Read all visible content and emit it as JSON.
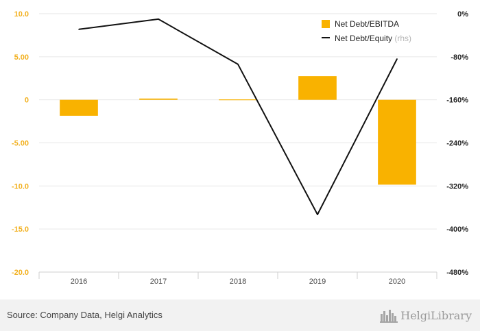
{
  "chart_data": {
    "type": "bar",
    "categories": [
      "2016",
      "2017",
      "2018",
      "2019",
      "2020"
    ],
    "series": [
      {
        "name": "Net Debt/EBITDA",
        "kind": "bar",
        "axis": "left",
        "values": [
          -1.85,
          0.15,
          0.05,
          2.75,
          -9.85
        ]
      },
      {
        "name": "Net Debt/Equity",
        "name_suffix": "(rhs)",
        "kind": "line",
        "axis": "right",
        "values": [
          -29.0,
          -10.0,
          -94.0,
          -373.0,
          -84.0
        ]
      }
    ],
    "y_left": {
      "min": -20,
      "max": 10,
      "ticks": [
        10,
        5,
        0,
        -5,
        -10,
        -15,
        -20
      ],
      "tick_labels": [
        "10.0",
        "5.00",
        "0",
        "-5.00",
        "-10.0",
        "-15.0",
        "-20.0"
      ]
    },
    "y_right": {
      "min": -480,
      "max": 0,
      "ticks": [
        0,
        -80,
        -160,
        -240,
        -320,
        -400,
        -480
      ],
      "tick_labels": [
        "0%",
        "-80%",
        "-160%",
        "-240%",
        "-320%",
        "-400%",
        "-480%"
      ]
    },
    "grid": true,
    "legend_position": "top-right",
    "colors": {
      "bar": "#f9b200",
      "line": "#111111",
      "left_axis_text": "#f2b01e",
      "grid": "#e6e6e6"
    }
  },
  "footer": {
    "source": "Source: Company Data, Helgi Analytics",
    "brand": "HelgiLibrary"
  }
}
